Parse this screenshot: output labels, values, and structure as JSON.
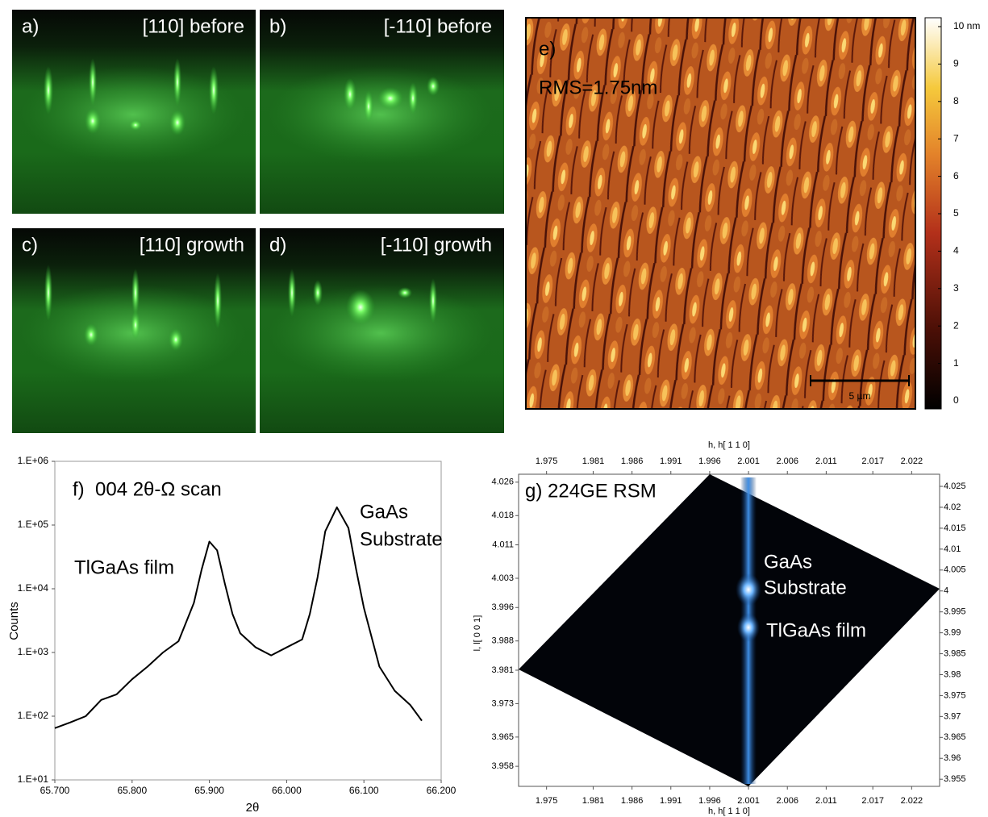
{
  "panels": [
    {
      "label": "a)",
      "title": "[110] before"
    },
    {
      "label": "b)",
      "title": "[-110] before"
    },
    {
      "label": "c)",
      "title": "[110] growth"
    },
    {
      "label": "d)",
      "title": "[-110] growth"
    }
  ],
  "afm": {
    "label": "e)",
    "rms": "RMS=1.75nm",
    "scale_bar": "5 µm",
    "colorbar_lim": [
      0,
      10
    ],
    "colorbar_ticks": [
      0,
      1,
      2,
      3,
      4,
      5,
      6,
      7,
      8,
      9,
      {
        "value": 10,
        "label": "10 nm"
      }
    ]
  },
  "chart_data": [
    {
      "type": "line",
      "title": "f)  004 2θ-Ω scan",
      "x_label": "2θ",
      "y_label": "Counts",
      "annotations": [
        "GaAs",
        "Substrate",
        "TlGaAs film"
      ],
      "log_y": true,
      "color": "#000000",
      "xlim": [
        65.7,
        66.2
      ],
      "xticks": [
        {
          "value": 65.7,
          "label": "65.700"
        },
        {
          "value": 65.8,
          "label": "65.800"
        },
        {
          "value": 65.9,
          "label": "65.900"
        },
        {
          "value": 66.0,
          "label": "66.000"
        },
        {
          "value": 66.1,
          "label": "66.100"
        },
        {
          "value": 66.2,
          "label": "66.200"
        }
      ],
      "ylim": [
        10,
        1000000
      ],
      "yticks": [
        {
          "value": 10,
          "label": "1.E+01"
        },
        {
          "value": 100,
          "label": "1.E+02"
        },
        {
          "value": 1000,
          "label": "1.E+03"
        },
        {
          "value": 10000,
          "label": "1.E+04"
        },
        {
          "value": 100000,
          "label": "1.E+05"
        },
        {
          "value": 1000000,
          "label": "1.E+06"
        }
      ],
      "x": [
        65.7,
        65.72,
        65.74,
        65.76,
        65.78,
        65.8,
        65.82,
        65.84,
        65.86,
        65.87,
        65.88,
        65.89,
        65.9,
        65.91,
        65.92,
        65.93,
        65.94,
        65.96,
        65.98,
        66.0,
        66.02,
        66.03,
        66.04,
        66.05,
        66.065,
        66.08,
        66.09,
        66.1,
        66.12,
        66.14,
        66.16,
        66.175
      ],
      "values": [
        65,
        80,
        100,
        180,
        220,
        380,
        600,
        1000,
        1500,
        3000,
        6000,
        20000,
        55000,
        40000,
        12000,
        4000,
        2000,
        1200,
        900,
        1200,
        1600,
        4000,
        15000,
        80000,
        190000,
        90000,
        20000,
        5000,
        600,
        250,
        150,
        85
      ]
    },
    {
      "type": "rsm",
      "title": "g) 224GE RSM",
      "x_label": "h, h[ 1 1 0]",
      "y_label": "l, l[ 0 0 1]",
      "annotations": [
        "GaAs",
        "Substrate",
        "TlGaAs film"
      ],
      "xlim": [
        1.9714,
        2.0256
      ],
      "xticks": [
        1.975,
        1.981,
        1.986,
        1.991,
        1.996,
        2.001,
        2.006,
        2.011,
        2.017,
        2.022
      ],
      "ylim": [
        3.9532,
        4.0279
      ],
      "yticks": [
        4.026,
        4.018,
        4.011,
        4.003,
        3.996,
        3.988,
        3.981,
        3.973,
        3.965,
        3.958
      ],
      "y2lim": [
        3.9533,
        4.0279
      ],
      "y2ticks": [
        4.025,
        4.02,
        4.015,
        4.01,
        4.005,
        4,
        3.995,
        3.99,
        3.985,
        3.98,
        3.975,
        3.97,
        3.965,
        3.96,
        3.955
      ]
    }
  ]
}
